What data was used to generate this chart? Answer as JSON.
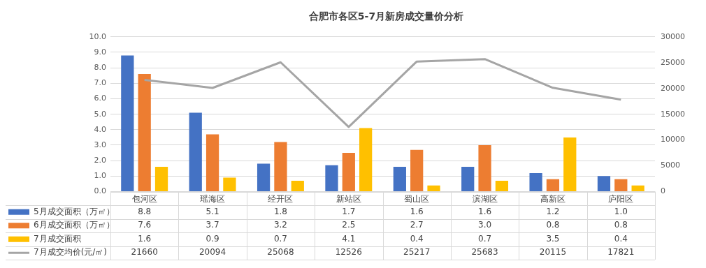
{
  "chart_data": {
    "type": "bar",
    "title": "合肥市各区5-7月新房成交量价分析",
    "categories": [
      "包河区",
      "瑶海区",
      "经开区",
      "新站区",
      "蜀山区",
      "滨湖区",
      "高新区",
      "庐阳区"
    ],
    "series": [
      {
        "name": "5月成交面积（万㎡）",
        "color": "#4472c4",
        "values": [
          8.8,
          5.1,
          1.8,
          1.7,
          1.6,
          1.6,
          1.2,
          1.0
        ],
        "value_labels": [
          "8.8",
          "5.1",
          "1.8",
          "1.7",
          "1.6",
          "1.6",
          "1.2",
          "1.0"
        ]
      },
      {
        "name": "6月成交面积（万㎡）",
        "color": "#ed7d31",
        "values": [
          7.6,
          3.7,
          3.2,
          2.5,
          2.7,
          3.0,
          0.8,
          0.8
        ],
        "value_labels": [
          "7.6",
          "3.7",
          "3.2",
          "2.5",
          "2.7",
          "3.0",
          "0.8",
          "0.8"
        ]
      },
      {
        "name": "7月成交面积",
        "color": "#ffc000",
        "values": [
          1.6,
          0.9,
          0.7,
          4.1,
          0.4,
          0.7,
          3.5,
          0.4
        ],
        "value_labels": [
          "1.6",
          "0.9",
          "0.7",
          "4.1",
          "0.4",
          "0.7",
          "3.5",
          "0.4"
        ]
      },
      {
        "name": "7月成交均价(元/㎡)",
        "type": "line",
        "axis": "y2",
        "color": "#a5a5a5",
        "values": [
          21660,
          20094,
          25068,
          12526,
          25217,
          25683,
          20115,
          17821
        ],
        "value_labels": [
          "21660",
          "20094",
          "25068",
          "12526",
          "25217",
          "25683",
          "20115",
          "17821"
        ]
      }
    ],
    "ylim": [
      0,
      10
    ],
    "yticks": [
      {
        "value": 0,
        "label": "0.0"
      },
      {
        "value": 1,
        "label": "1.0"
      },
      {
        "value": 2,
        "label": "2.0"
      },
      {
        "value": 3,
        "label": "3.0"
      },
      {
        "value": 4,
        "label": "4.0"
      },
      {
        "value": 5,
        "label": "5.0"
      },
      {
        "value": 6,
        "label": "6.0"
      },
      {
        "value": 7,
        "label": "7.0"
      },
      {
        "value": 8,
        "label": "8.0"
      },
      {
        "value": 9,
        "label": "9.0"
      },
      {
        "value": 10,
        "label": "10.0"
      }
    ],
    "y2lim": [
      0,
      30000
    ],
    "y2ticks": [
      0,
      5000,
      10000,
      15000,
      20000,
      25000,
      30000
    ],
    "grid": "y",
    "legend": "bottom",
    "marker": "none",
    "line_style": "solid"
  }
}
